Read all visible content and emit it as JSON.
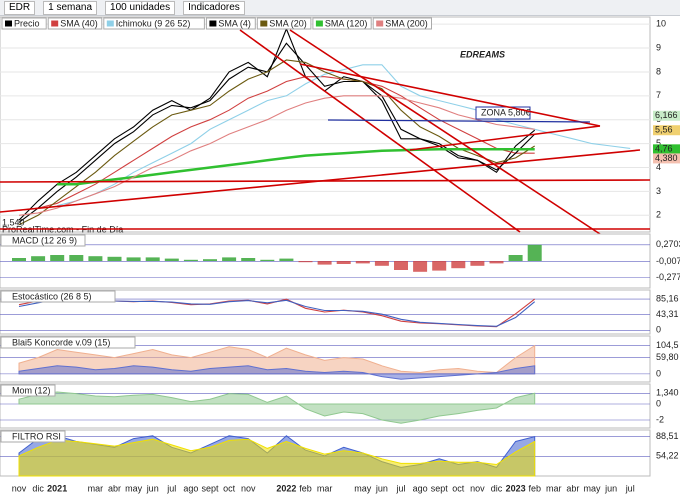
{
  "toolbar": {
    "symbol": "EDR",
    "period": "1 semana",
    "units": "100 unidades",
    "indicators": "Indicadores"
  },
  "chart_data": [
    {
      "type": "line",
      "categories": [
        "nov",
        "dic",
        "2021",
        null,
        "mar",
        "abr",
        "may",
        "jun",
        "jul",
        "ago",
        "sept",
        "oct",
        "nov",
        null,
        "2022",
        "feb",
        "mar",
        null,
        "may",
        "jun",
        "jul",
        "ago",
        "sept",
        "oct",
        "nov",
        "dic",
        "2023",
        "feb",
        "mar",
        "abr",
        "may",
        "jun",
        "jul"
      ],
      "ylim": [
        1.3,
        10.3
      ],
      "yticks": [
        2,
        3,
        4,
        5,
        6,
        7,
        8,
        9,
        10
      ],
      "annotations": [
        "EDREAMS",
        "ZONA 5,80€",
        "1,540",
        "ProRealTime.com - Fin de Día"
      ],
      "price_labels": [
        {
          "value": 6.166,
          "label": "6,166",
          "color": "#c8ecc8"
        },
        {
          "value": 5.56,
          "label": "5,56",
          "color": "#f0d070"
        },
        {
          "value": 4.76,
          "label": "4,76",
          "color": "#30c030"
        },
        {
          "value": 4.38,
          "label": "4,380",
          "color": "#f4c0b0"
        }
      ],
      "series": [
        {
          "name": "Precio",
          "color": "#000000",
          "values": [
            1.8,
            2.6,
            3.3,
            3.8,
            4.5,
            5.2,
            5.7,
            6.4,
            6.8,
            6.4,
            6.9,
            8.0,
            8.4,
            7.8,
            9.8,
            7.8,
            7.2,
            7.8,
            7.6,
            6.8,
            5.2,
            5.2,
            4.9,
            4.4,
            4.3,
            3.8,
            4.9,
            5.56,
            null,
            null,
            null,
            null,
            null
          ]
        },
        {
          "name": "SMA (40)",
          "color": "#d04040",
          "values": [
            2.2,
            2.3,
            2.5,
            2.9,
            3.3,
            3.8,
            4.3,
            4.8,
            5.3,
            5.7,
            6.0,
            6.4,
            6.9,
            7.2,
            7.6,
            7.8,
            7.8,
            7.7,
            7.6,
            7.4,
            7.0,
            6.5,
            6.0,
            5.6,
            5.2,
            4.8,
            4.6,
            4.6,
            null,
            null,
            null,
            null,
            null
          ]
        },
        {
          "name": "Ichimoku (9 26 52)",
          "color": "#8fd0e8",
          "values": [
            null,
            null,
            2.4,
            2.6,
            2.9,
            3.3,
            3.8,
            4.2,
            4.6,
            5.0,
            5.6,
            6.0,
            6.4,
            6.8,
            7.0,
            7.5,
            7.9,
            8.1,
            8.3,
            8.3,
            7.4,
            7.0,
            6.8,
            6.6,
            6.4,
            6.0,
            5.8,
            5.6,
            5.4,
            5.2,
            5.0,
            4.9,
            4.8
          ]
        },
        {
          "name": "SMA (4)",
          "color": "#000000",
          "values": [
            1.7,
            2.3,
            3.0,
            3.6,
            4.3,
            5.0,
            5.5,
            6.2,
            6.6,
            6.5,
            6.8,
            7.7,
            8.2,
            8.0,
            9.2,
            8.3,
            7.4,
            7.6,
            7.6,
            7.0,
            5.6,
            5.2,
            5.0,
            4.5,
            4.3,
            3.9,
            4.6,
            5.4,
            null,
            null,
            null,
            null,
            null
          ]
        },
        {
          "name": "SMA (20)",
          "color": "#6b5a10",
          "values": [
            1.6,
            2.0,
            2.6,
            3.2,
            3.8,
            4.5,
            5.1,
            5.7,
            6.2,
            6.4,
            6.6,
            7.2,
            7.7,
            8.0,
            8.5,
            8.4,
            8.0,
            7.7,
            7.6,
            7.3,
            6.4,
            5.7,
            5.3,
            4.8,
            4.5,
            4.2,
            4.4,
            4.9,
            null,
            null,
            null,
            null,
            null
          ]
        },
        {
          "name": "SMA (120)",
          "color": "#30c030",
          "values": [
            null,
            null,
            3.3,
            3.3,
            3.4,
            3.5,
            3.6,
            3.7,
            3.8,
            3.9,
            4.0,
            4.1,
            4.2,
            4.3,
            4.4,
            4.5,
            4.55,
            4.6,
            4.65,
            4.7,
            4.72,
            4.75,
            4.76,
            4.76,
            4.76,
            4.76,
            4.76,
            4.76,
            null,
            null,
            null,
            null,
            null
          ]
        },
        {
          "name": "SMA (200)",
          "color": "#e08080",
          "values": [
            2.0,
            2.1,
            2.3,
            2.6,
            2.9,
            3.2,
            3.6,
            4.0,
            4.3,
            4.7,
            5.0,
            5.4,
            5.7,
            6.0,
            6.4,
            6.7,
            6.9,
            7.0,
            7.0,
            7.0,
            6.9,
            6.7,
            6.5,
            6.2,
            6.0,
            5.8,
            5.7,
            5.6,
            null,
            null,
            null,
            null,
            null
          ]
        }
      ]
    },
    {
      "type": "bar",
      "title": "MACD (12 26 9)",
      "ylim": [
        -0.45,
        0.45
      ],
      "yticks": [
        {
          "value": 0.2703,
          "label": "0,2703"
        },
        {
          "value": -0.007,
          "label": "-0,007"
        },
        {
          "value": -0.277,
          "label": "-0,277"
        }
      ],
      "colors": {
        "positive": "#2aa02a",
        "negative": "#d04040"
      },
      "series": [
        {
          "color": "#2aa02a",
          "values": [
            0.05,
            0.08,
            0.1,
            0.1,
            0.08,
            0.07,
            0.06,
            0.06,
            0.04,
            0.02,
            0.03,
            0.06,
            0.05,
            0.02,
            0.04,
            -0.02,
            -0.06,
            -0.05,
            -0.04,
            -0.08,
            -0.15,
            -0.18,
            -0.16,
            -0.12,
            -0.08,
            -0.04,
            0.1,
            0.27,
            null,
            null,
            null,
            null,
            null
          ]
        }
      ]
    },
    {
      "type": "line",
      "title": "Estocástico (26 8 5)",
      "ylim": [
        -10,
        110
      ],
      "yticks": [
        {
          "value": 85.16,
          "label": "85,16"
        },
        {
          "value": 43.31,
          "label": "43,31"
        },
        0
      ],
      "series": [
        {
          "color": "#d04040",
          "values": [
            70,
            80,
            88,
            85,
            82,
            80,
            78,
            80,
            76,
            70,
            72,
            80,
            82,
            72,
            85,
            60,
            50,
            55,
            50,
            40,
            25,
            20,
            18,
            15,
            12,
            10,
            45,
            85.16,
            null,
            null,
            null,
            null,
            null
          ]
        },
        {
          "color": "#4060c0",
          "values": [
            65,
            75,
            85,
            86,
            83,
            80,
            79,
            79,
            77,
            72,
            71,
            78,
            81,
            75,
            82,
            65,
            54,
            54,
            52,
            44,
            30,
            22,
            19,
            16,
            13,
            11,
            35,
            78,
            null,
            null,
            null,
            null,
            null
          ]
        }
      ]
    },
    {
      "type": "area",
      "title": "Blai5 Koncorde v.09 (15)",
      "ylim": [
        -30,
        140
      ],
      "yticks": [
        {
          "value": 104.5,
          "label": "104,5"
        },
        {
          "value": 59.8,
          "label": "59,80"
        },
        0
      ],
      "series": [
        {
          "color": "#f0b090",
          "values": [
            40,
            60,
            90,
            80,
            70,
            60,
            75,
            90,
            70,
            60,
            80,
            100,
            90,
            60,
            95,
            70,
            50,
            60,
            55,
            30,
            10,
            5,
            15,
            20,
            10,
            5,
            60,
            104.5,
            null,
            null,
            null,
            null,
            null
          ]
        },
        {
          "color": "#6070d0",
          "values": [
            10,
            20,
            30,
            25,
            15,
            20,
            30,
            25,
            15,
            10,
            20,
            25,
            30,
            15,
            20,
            10,
            5,
            10,
            5,
            -10,
            -20,
            -15,
            -10,
            -5,
            0,
            5,
            20,
            30,
            null,
            null,
            null,
            null,
            null
          ]
        }
      ]
    },
    {
      "type": "area",
      "title": "Mom (12)",
      "ylim": [
        -3,
        2.5
      ],
      "yticks": [
        {
          "value": 1.34,
          "label": "1,340"
        },
        0,
        -2
      ],
      "series": [
        {
          "color": "#90c890",
          "values": [
            0.6,
            1.2,
            1.5,
            1.3,
            1.0,
            0.9,
            1.1,
            1.2,
            0.8,
            0.3,
            0.6,
            1.3,
            1.2,
            0.2,
            1.0,
            -0.6,
            -1.5,
            -1.0,
            -1.2,
            -2.0,
            -2.4,
            -2.0,
            -1.5,
            -1.2,
            -0.8,
            -0.5,
            0.8,
            1.34,
            null,
            null,
            null,
            null,
            null
          ]
        }
      ]
    },
    {
      "type": "area",
      "title": "FILTRO RSI",
      "ylim": [
        20,
        100
      ],
      "yticks": [
        {
          "value": 88.51,
          "label": "88,51"
        },
        {
          "value": 54.22,
          "label": "54,22"
        }
      ],
      "series": [
        {
          "color": "#4060d0",
          "values": [
            60,
            85,
            90,
            80,
            75,
            70,
            85,
            90,
            70,
            60,
            75,
            90,
            85,
            60,
            90,
            65,
            55,
            70,
            60,
            45,
            35,
            40,
            50,
            40,
            45,
            35,
            80,
            88.51,
            null,
            null,
            null,
            null,
            null
          ]
        },
        {
          "color": "#f0e000",
          "values": [
            55,
            70,
            82,
            80,
            76,
            72,
            78,
            84,
            74,
            64,
            70,
            82,
            84,
            68,
            80,
            68,
            58,
            64,
            60,
            50,
            42,
            42,
            46,
            44,
            44,
            40,
            62,
            80,
            null,
            null,
            null,
            null,
            null
          ]
        }
      ]
    }
  ]
}
